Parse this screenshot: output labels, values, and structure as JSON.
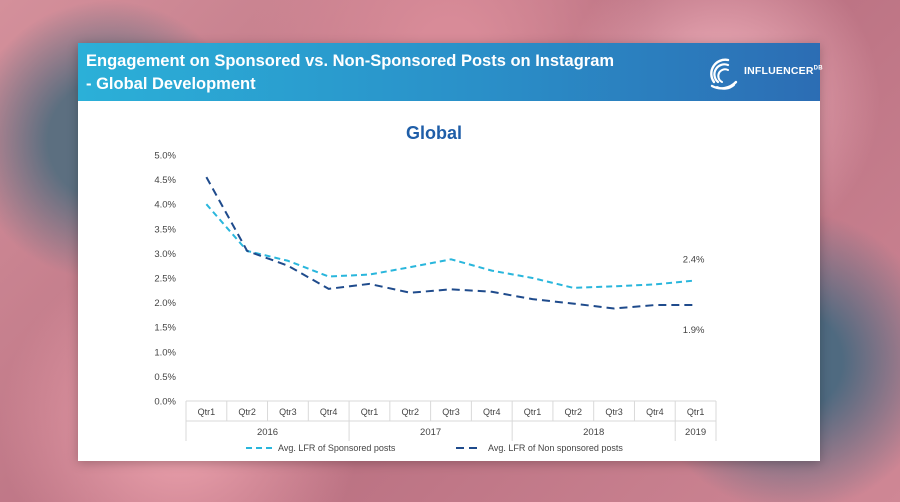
{
  "header": {
    "title_line1": "Engagement on Sponsored vs. Non-Sponsored Posts on Instagram",
    "title_line2": "- Global Development",
    "logo_text": "INFLUENCER",
    "logo_suffix": "DB",
    "logo_icon": "concentric-arcs-logo-icon"
  },
  "colors": {
    "sponsored": "#29b6dc",
    "non_sponsored": "#1f4b8c",
    "title": "#1f5ea8",
    "axis_text": "#444444",
    "grid": "#d9d9d9"
  },
  "chart_data": {
    "type": "line",
    "title": "Global",
    "categories": [
      "Qtr1",
      "Qtr2",
      "Qtr3",
      "Qtr4",
      "Qtr1",
      "Qtr2",
      "Qtr3",
      "Qtr4",
      "Qtr1",
      "Qtr2",
      "Qtr3",
      "Qtr4",
      "Qtr1"
    ],
    "groups": [
      {
        "label": "2016",
        "count": 4
      },
      {
        "label": "2017",
        "count": 4
      },
      {
        "label": "2018",
        "count": 4
      },
      {
        "label": "2019",
        "count": 1
      }
    ],
    "y_ticks": [
      "0.0%",
      "0.5%",
      "1.0%",
      "1.5%",
      "2.0%",
      "2.5%",
      "3.0%",
      "3.5%",
      "4.0%",
      "4.5%",
      "5.0%"
    ],
    "ylim": [
      0,
      5
    ],
    "series": [
      {
        "name": "Avg. LFR of Sponsored posts",
        "values": [
          4.0,
          3.05,
          2.85,
          2.53,
          2.57,
          2.72,
          2.88,
          2.65,
          2.5,
          2.3,
          2.33,
          2.37,
          2.45
        ],
        "end_label": "2.4%"
      },
      {
        "name": "Avg. LFR of Non sponsored posts",
        "values": [
          4.55,
          3.05,
          2.75,
          2.28,
          2.38,
          2.2,
          2.27,
          2.22,
          2.07,
          1.98,
          1.88,
          1.95,
          1.95
        ],
        "end_label": "1.9%"
      }
    ],
    "legend_position": "bottom",
    "grid": false
  }
}
